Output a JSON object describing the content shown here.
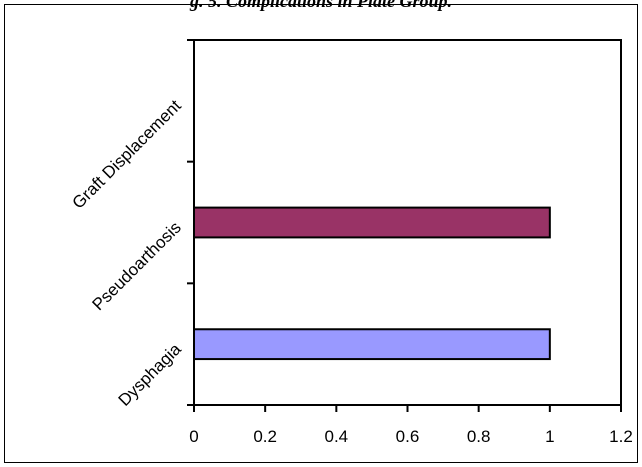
{
  "chart_data": {
    "type": "bar",
    "orientation": "horizontal",
    "title": "g. 5. Complications in Plate Group.",
    "categories": [
      "Dysphagia",
      "Pseudoarthosis",
      "Graft Displacement"
    ],
    "values": [
      1,
      1,
      0
    ],
    "bar_colors": [
      "#9999ff",
      "#993366",
      "#cccccc"
    ],
    "xlabel": "",
    "ylabel": "",
    "xlim": [
      0,
      1.2
    ],
    "xticks": [
      "0",
      "0.2",
      "0.4",
      "0.6",
      "0.8",
      "1",
      "1.2"
    ],
    "grid": false,
    "legend": "none"
  }
}
